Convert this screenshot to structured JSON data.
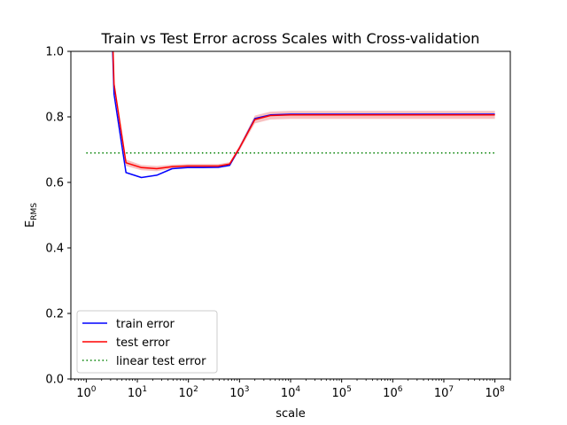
{
  "chart_data": {
    "type": "line",
    "title": "Train vs Test Error across Scales with Cross-validation",
    "xlabel": "scale",
    "ylabel": "E",
    "ylabel_sub": "RMS",
    "x_scale": "log",
    "xlim": [
      0.5,
      200000000
    ],
    "ylim": [
      0.0,
      1.0
    ],
    "grid": false,
    "legend_position": "lower-left",
    "y_ticks": [
      "0.0",
      "0.2",
      "0.4",
      "0.6",
      "0.8",
      "1.0"
    ],
    "y_tick_values": [
      0.0,
      0.2,
      0.4,
      0.6,
      0.8,
      1.0
    ],
    "x_tick_exponents": [
      0,
      1,
      2,
      3,
      4,
      5,
      6,
      7,
      8
    ],
    "x_tick_base": "10",
    "series": [
      {
        "name": "train error",
        "color": "#0000ff",
        "style": "solid",
        "x": [
          3,
          3.5,
          6,
          12,
          24,
          48,
          96,
          192,
          384,
          640,
          1000,
          2000,
          4000,
          10000,
          100000,
          1000000,
          10000000,
          100000000
        ],
        "y": [
          1.2,
          0.87,
          0.63,
          0.615,
          0.622,
          0.642,
          0.645,
          0.645,
          0.646,
          0.652,
          0.705,
          0.795,
          0.806,
          0.808,
          0.808,
          0.808,
          0.808,
          0.808
        ]
      },
      {
        "name": "test error",
        "color": "#ff0000",
        "band_color": "#f4a6a6",
        "style": "solid",
        "x": [
          3,
          3.5,
          6,
          12,
          24,
          48,
          96,
          192,
          384,
          640,
          1000,
          2000,
          4000,
          10000,
          100000,
          1000000,
          10000000,
          100000000
        ],
        "y": [
          1.25,
          0.9,
          0.66,
          0.645,
          0.642,
          0.648,
          0.65,
          0.65,
          0.65,
          0.656,
          0.705,
          0.792,
          0.804,
          0.806,
          0.806,
          0.806,
          0.806,
          0.806
        ],
        "band": [
          0.012,
          0.012,
          0.01,
          0.008,
          0.008,
          0.006,
          0.006,
          0.006,
          0.006,
          0.006,
          0.008,
          0.012,
          0.012,
          0.012,
          0.012,
          0.012,
          0.012,
          0.012
        ]
      },
      {
        "name": "linear test error",
        "color": "#008000",
        "style": "dotted",
        "x": [
          1,
          100000000
        ],
        "y": [
          0.69,
          0.69
        ]
      }
    ]
  }
}
